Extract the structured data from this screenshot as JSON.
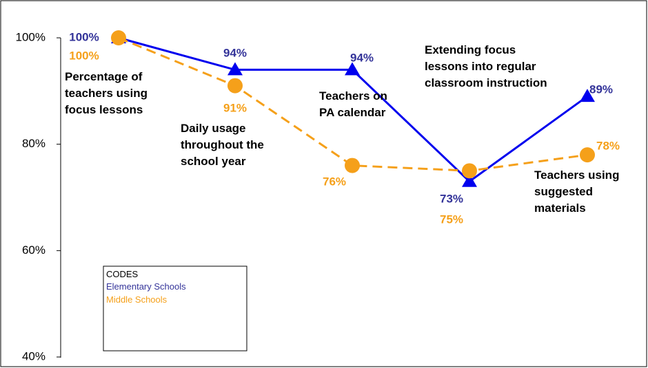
{
  "chart_data": {
    "type": "line",
    "categories": [
      "Percentage of teachers using focus lessons",
      "Daily usage throughout the school year",
      "Teachers on PA calendar",
      "Extending focus lessons into regular classroom instruction",
      "Teachers using suggested materials"
    ],
    "series": [
      {
        "name": "Elementary Schools",
        "color": "#0000ee",
        "label_color": "#333399",
        "marker": "triangle",
        "dashed": false,
        "values": [
          100,
          94,
          94,
          73,
          89
        ],
        "value_labels": [
          "100%",
          "94%",
          "94%",
          "73%",
          "89%"
        ]
      },
      {
        "name": "Middle Schools",
        "color": "#f5a01a",
        "label_color": "#f5a01a",
        "marker": "circle",
        "dashed": true,
        "values": [
          100,
          91,
          76,
          75,
          78
        ],
        "value_labels": [
          "100%",
          "91%",
          "76%",
          "75%",
          "78%"
        ]
      }
    ],
    "legend_title": "CODES",
    "ylim": [
      40,
      100
    ],
    "yticks": [
      {
        "value": 40,
        "label": "40%"
      },
      {
        "value": 60,
        "label": "60%"
      },
      {
        "value": 80,
        "label": "80%"
      },
      {
        "value": 100,
        "label": "100%"
      }
    ]
  }
}
